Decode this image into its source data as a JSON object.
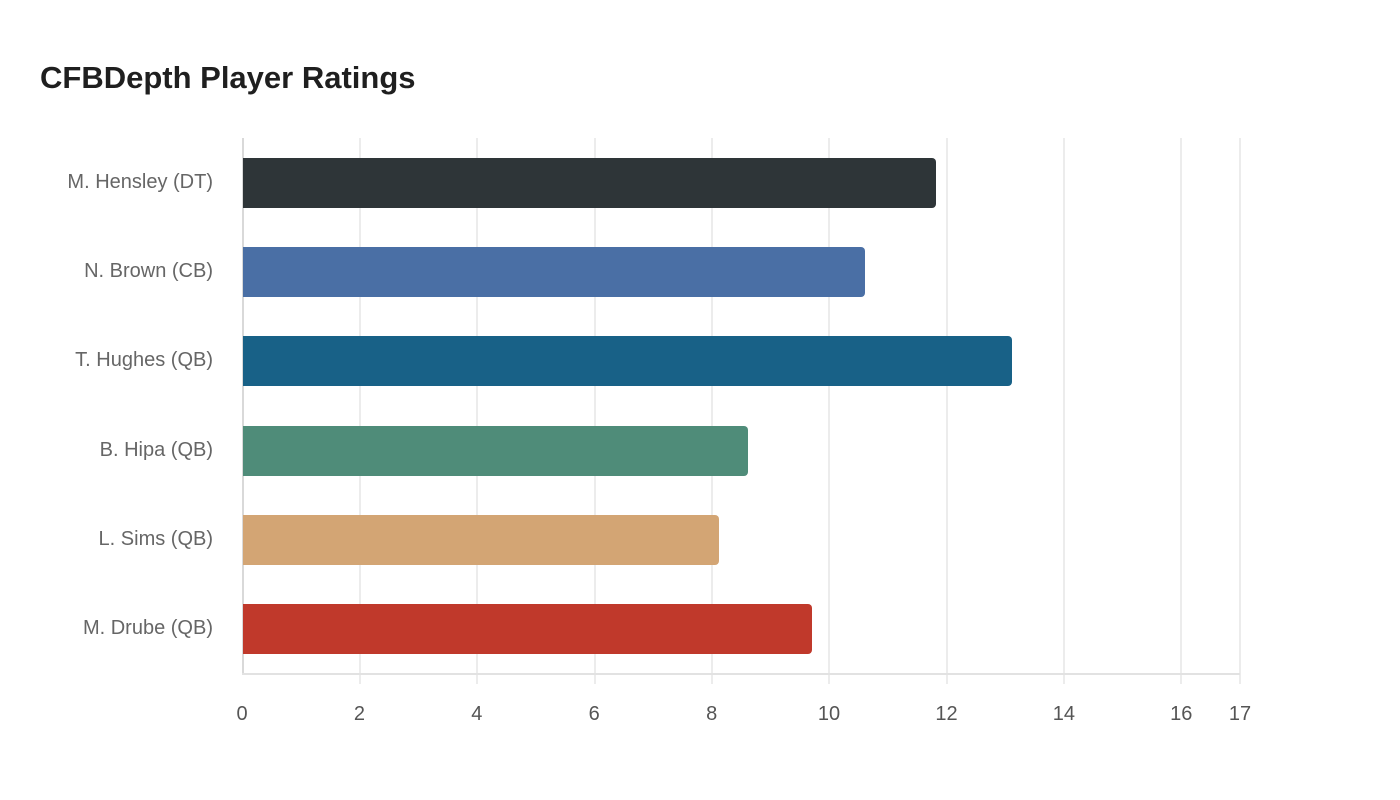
{
  "chart_data": {
    "type": "bar",
    "orientation": "horizontal",
    "title": "CFBDepth Player Ratings",
    "xlabel": "",
    "ylabel": "",
    "categories": [
      "M. Hensley (DT)",
      "N. Brown (CB)",
      "T. Hughes (QB)",
      "B. Hipa (QB)",
      "L. Sims (QB)",
      "M. Drube (QB)"
    ],
    "values": [
      11.8,
      10.6,
      13.1,
      8.6,
      8.1,
      9.7
    ],
    "colors": [
      "#2e3538",
      "#4a6fa5",
      "#186187",
      "#4f8c79",
      "#d3a574",
      "#c0392b"
    ],
    "xlim": [
      0,
      17
    ],
    "xticks": [
      "0",
      "2",
      "4",
      "6",
      "8",
      "10",
      "12",
      "14",
      "16",
      "17"
    ],
    "grid": true,
    "legend": "none"
  }
}
